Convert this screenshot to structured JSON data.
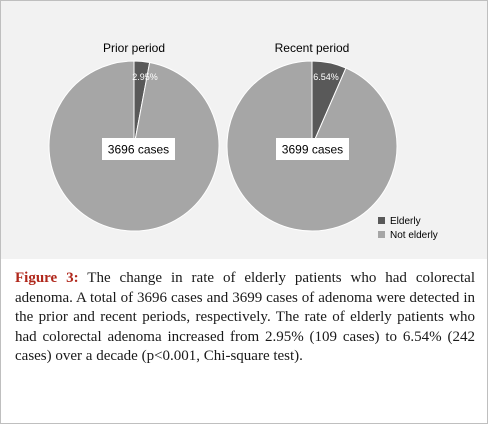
{
  "chart_data": [
    {
      "type": "pie",
      "title": "Prior period",
      "center_label": "3696 cases",
      "slices": [
        {
          "label": "Elderly",
          "value": 2.95,
          "color": "#595959",
          "data_label": "2.95%"
        },
        {
          "label": "Not elderly",
          "value": 97.05,
          "color": "#a6a6a6"
        }
      ]
    },
    {
      "type": "pie",
      "title": "Recent period",
      "center_label": "3699 cases",
      "slices": [
        {
          "label": "Elderly",
          "value": 6.54,
          "color": "#595959",
          "data_label": "6.54%"
        },
        {
          "label": "Not elderly",
          "value": 93.46,
          "color": "#a6a6a6"
        }
      ]
    }
  ],
  "legend": [
    {
      "label": "Elderly",
      "color": "#595959"
    },
    {
      "label": "Not elderly",
      "color": "#a6a6a6"
    }
  ],
  "caption": {
    "label": "Figure 3:",
    "text": "The change in rate of elderly patients who had colorectal adenoma. A total of 3696 cases and 3699 cases of adenoma were detected in the prior and recent periods, respectively. The rate of elderly patients who had colorectal adenoma increased from 2.95% (109 cases) to 6.54% (242 cases) over a decade (p<0.001, Chi-square test)."
  }
}
